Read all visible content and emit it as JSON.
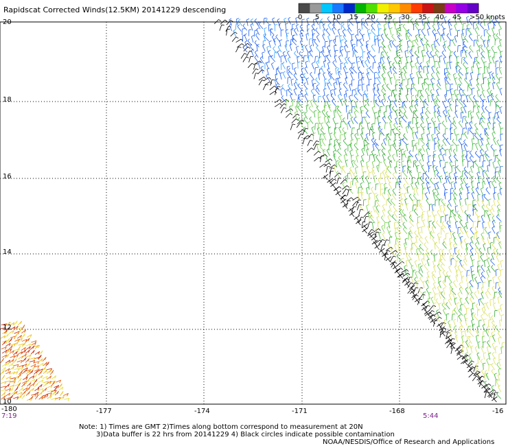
{
  "title": "Rapidscat Corrected Winds(12.5KM) 20141229 descending",
  "color_scale": {
    "labels": [
      "0",
      "5",
      "10",
      "15",
      "20",
      "25",
      "30",
      "35",
      "40",
      "45",
      ">50 knots"
    ],
    "colors": [
      "#4a4a4a",
      "#9a9a9a",
      "#00c8ff",
      "#1a78ff",
      "#0028c8",
      "#00b400",
      "#50e000",
      "#f0f000",
      "#ffc800",
      "#ff8c00",
      "#ff3c00",
      "#c81414",
      "#7a3c14",
      "#c800c8",
      "#9600e6",
      "#6400c8"
    ]
  },
  "lon_labels": [
    "-180",
    "-177",
    "-174",
    "-171",
    "-168",
    "-16"
  ],
  "lat_labels": [
    "20",
    "18",
    "16",
    "14",
    "12",
    "10"
  ],
  "time_left": "7:19",
  "time_right": "5:44",
  "notes": {
    "line1": "Note: 1) Times are GMT 2)Times along bottom correspond to measurement at 20N",
    "line2": "3)Data buffer is 22 hrs from 20141229 4) Black circles indicate possible contamination",
    "credit": "NOAA/NESDIS/Office of Research and Applications"
  }
}
